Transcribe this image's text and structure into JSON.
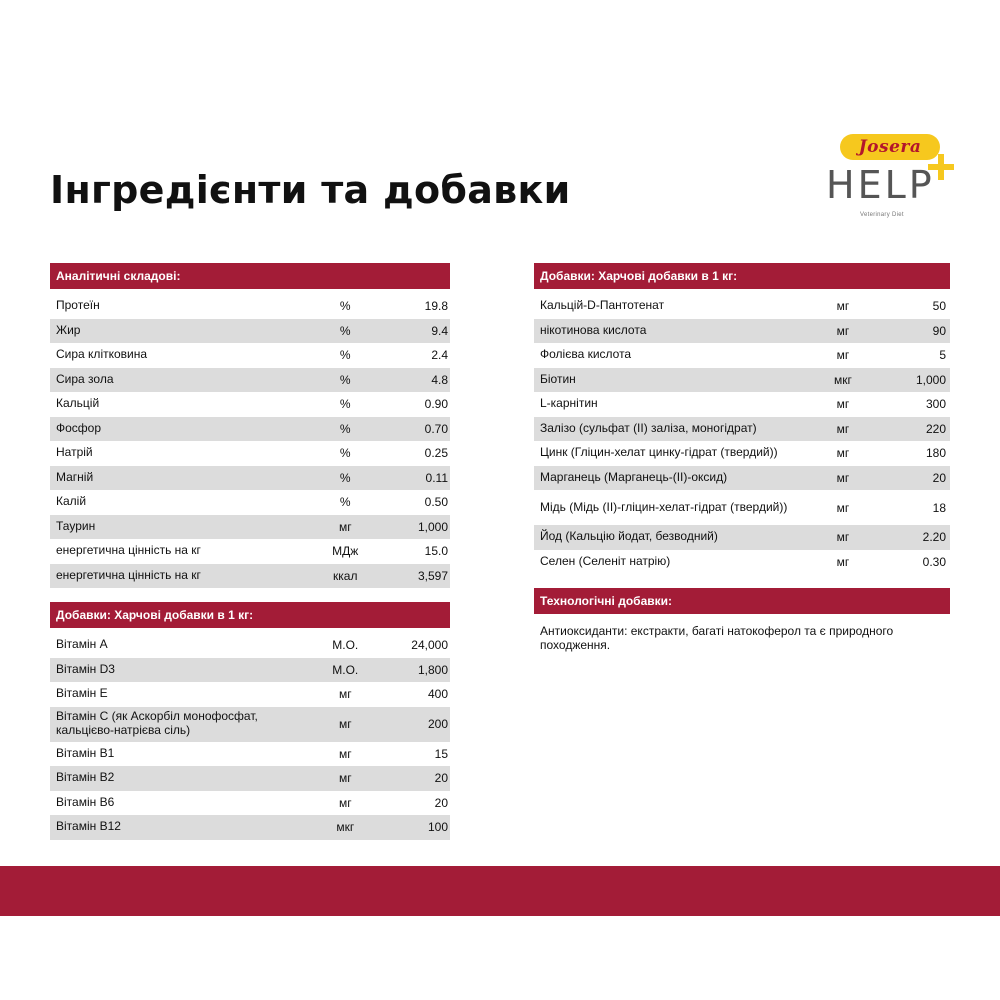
{
  "title": "Інгредієнти та добавки",
  "logo": {
    "brand": "Josera",
    "product": "HELP",
    "subtitle": "Veterinary Diet"
  },
  "colors": {
    "accent": "#a31c37",
    "logo_yellow": "#f6c81e",
    "row_alt": "#dcdcdc"
  },
  "analytical": {
    "header": "Аналітичні складові:",
    "rows": [
      {
        "name": "Протеїн",
        "unit": "%",
        "value": "19.8"
      },
      {
        "name": "Жир",
        "unit": "%",
        "value": "9.4"
      },
      {
        "name": "Сира клітковина",
        "unit": "%",
        "value": "2.4"
      },
      {
        "name": "Сира зола",
        "unit": "%",
        "value": "4.8"
      },
      {
        "name": "Кальцій",
        "unit": "%",
        "value": "0.90"
      },
      {
        "name": "Фосфор",
        "unit": "%",
        "value": "0.70"
      },
      {
        "name": "Натрій",
        "unit": "%",
        "value": "0.25"
      },
      {
        "name": "Магній",
        "unit": "%",
        "value": "0.11"
      },
      {
        "name": "Калій",
        "unit": "%",
        "value": "0.50"
      },
      {
        "name": "Таурин",
        "unit": "мг",
        "value": "1,000"
      },
      {
        "name": "енергетична цінність на кг",
        "unit": "МДж",
        "value": "15.0"
      },
      {
        "name": "енергетична цінність на кг",
        "unit": "ккал",
        "value": "3,597"
      }
    ]
  },
  "vitamins": {
    "header": "Добавки: Харчові добавки в 1 кг:",
    "rows": [
      {
        "name": "Вітамін А",
        "unit": "М.О.",
        "value": "24,000"
      },
      {
        "name": "Вітамін D3",
        "unit": "М.О.",
        "value": "1,800"
      },
      {
        "name": "Вітамін Е",
        "unit": "мг",
        "value": "400"
      },
      {
        "name": "Вітамін С (як Аскорбіл монофосфат, кальцієво-натрієва сіль)",
        "unit": "мг",
        "value": "200"
      },
      {
        "name": "Вітамін В1",
        "unit": "мг",
        "value": "15"
      },
      {
        "name": "Вітамін В2",
        "unit": "мг",
        "value": "20"
      },
      {
        "name": "Вітамін В6",
        "unit": "мг",
        "value": "20"
      },
      {
        "name": "Вітамін В12",
        "unit": "мкг",
        "value": "100"
      }
    ]
  },
  "additives": {
    "header": "Добавки: Харчові добавки в 1 кг:",
    "rows": [
      {
        "name": "Кальцій-D-Пантотенат",
        "unit": "мг",
        "value": "50"
      },
      {
        "name": "нікотинова кислота",
        "unit": "мг",
        "value": "90"
      },
      {
        "name": "Фолієва кислота",
        "unit": "мг",
        "value": "5"
      },
      {
        "name": "Біотин",
        "unit": "мкг",
        "value": "1,000"
      },
      {
        "name": "L-карнітин",
        "unit": "мг",
        "value": "300"
      },
      {
        "name": "Залізо (сульфат (II) заліза, моногідрат)",
        "unit": "мг",
        "value": "220"
      },
      {
        "name": "Цинк (Гліцин-хелат цинку-гідрат (твердий))",
        "unit": "мг",
        "value": "180"
      },
      {
        "name": "Марганець (Марганець-(II)-оксид)",
        "unit": "мг",
        "value": "20"
      },
      {
        "name": "Мідь (Мідь (II)-гліцин-хелат-гідрат (твердий))",
        "unit": "мг",
        "value": "18"
      },
      {
        "name": "Йод (Кальцію йодат, безводний)",
        "unit": "мг",
        "value": "2.20"
      },
      {
        "name": "Селен (Селеніт натрію)",
        "unit": "мг",
        "value": "0.30"
      }
    ]
  },
  "technological": {
    "header": "Технологічні добавки:",
    "text": "Антиоксиданти: екстракти, багаті натокоферол та є природного походження."
  }
}
